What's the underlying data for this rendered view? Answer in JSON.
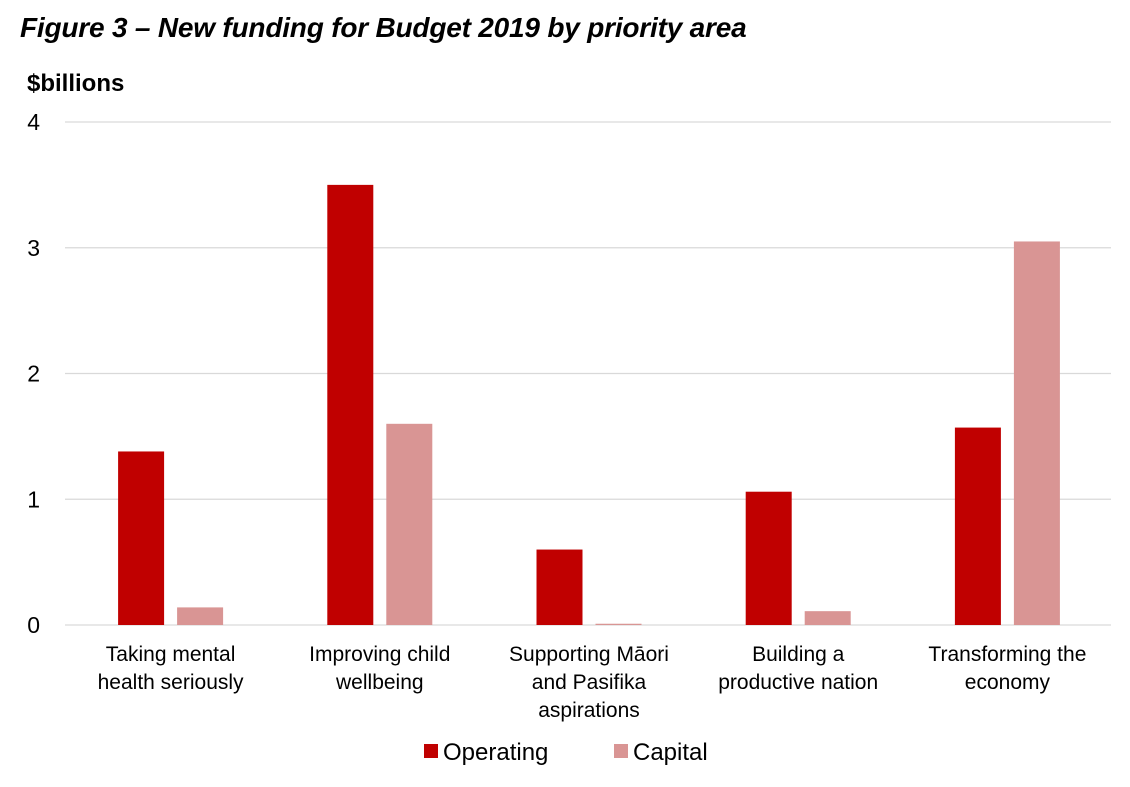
{
  "chart_data": {
    "type": "bar",
    "title": "Figure 3 – New funding for Budget 2019 by priority area",
    "ylabel": "$billions",
    "xlabel": "",
    "ylim": [
      0,
      4
    ],
    "yticks": [
      "0",
      "1",
      "2",
      "3",
      "4"
    ],
    "grid": true,
    "legend_position": "bottom",
    "categories": [
      [
        "Taking mental",
        "health seriously"
      ],
      [
        "Improving child",
        "wellbeing"
      ],
      [
        "Supporting Māori",
        "and Pasifika",
        "aspirations"
      ],
      [
        "Building a",
        "productive nation"
      ],
      [
        "Transforming the",
        "economy"
      ]
    ],
    "series": [
      {
        "name": "Operating",
        "color": "#C00000",
        "values": [
          1.38,
          3.5,
          0.6,
          1.06,
          1.57
        ]
      },
      {
        "name": "Capital",
        "color": "#D99594",
        "values": [
          0.14,
          1.6,
          0.01,
          0.11,
          3.05
        ]
      }
    ]
  }
}
